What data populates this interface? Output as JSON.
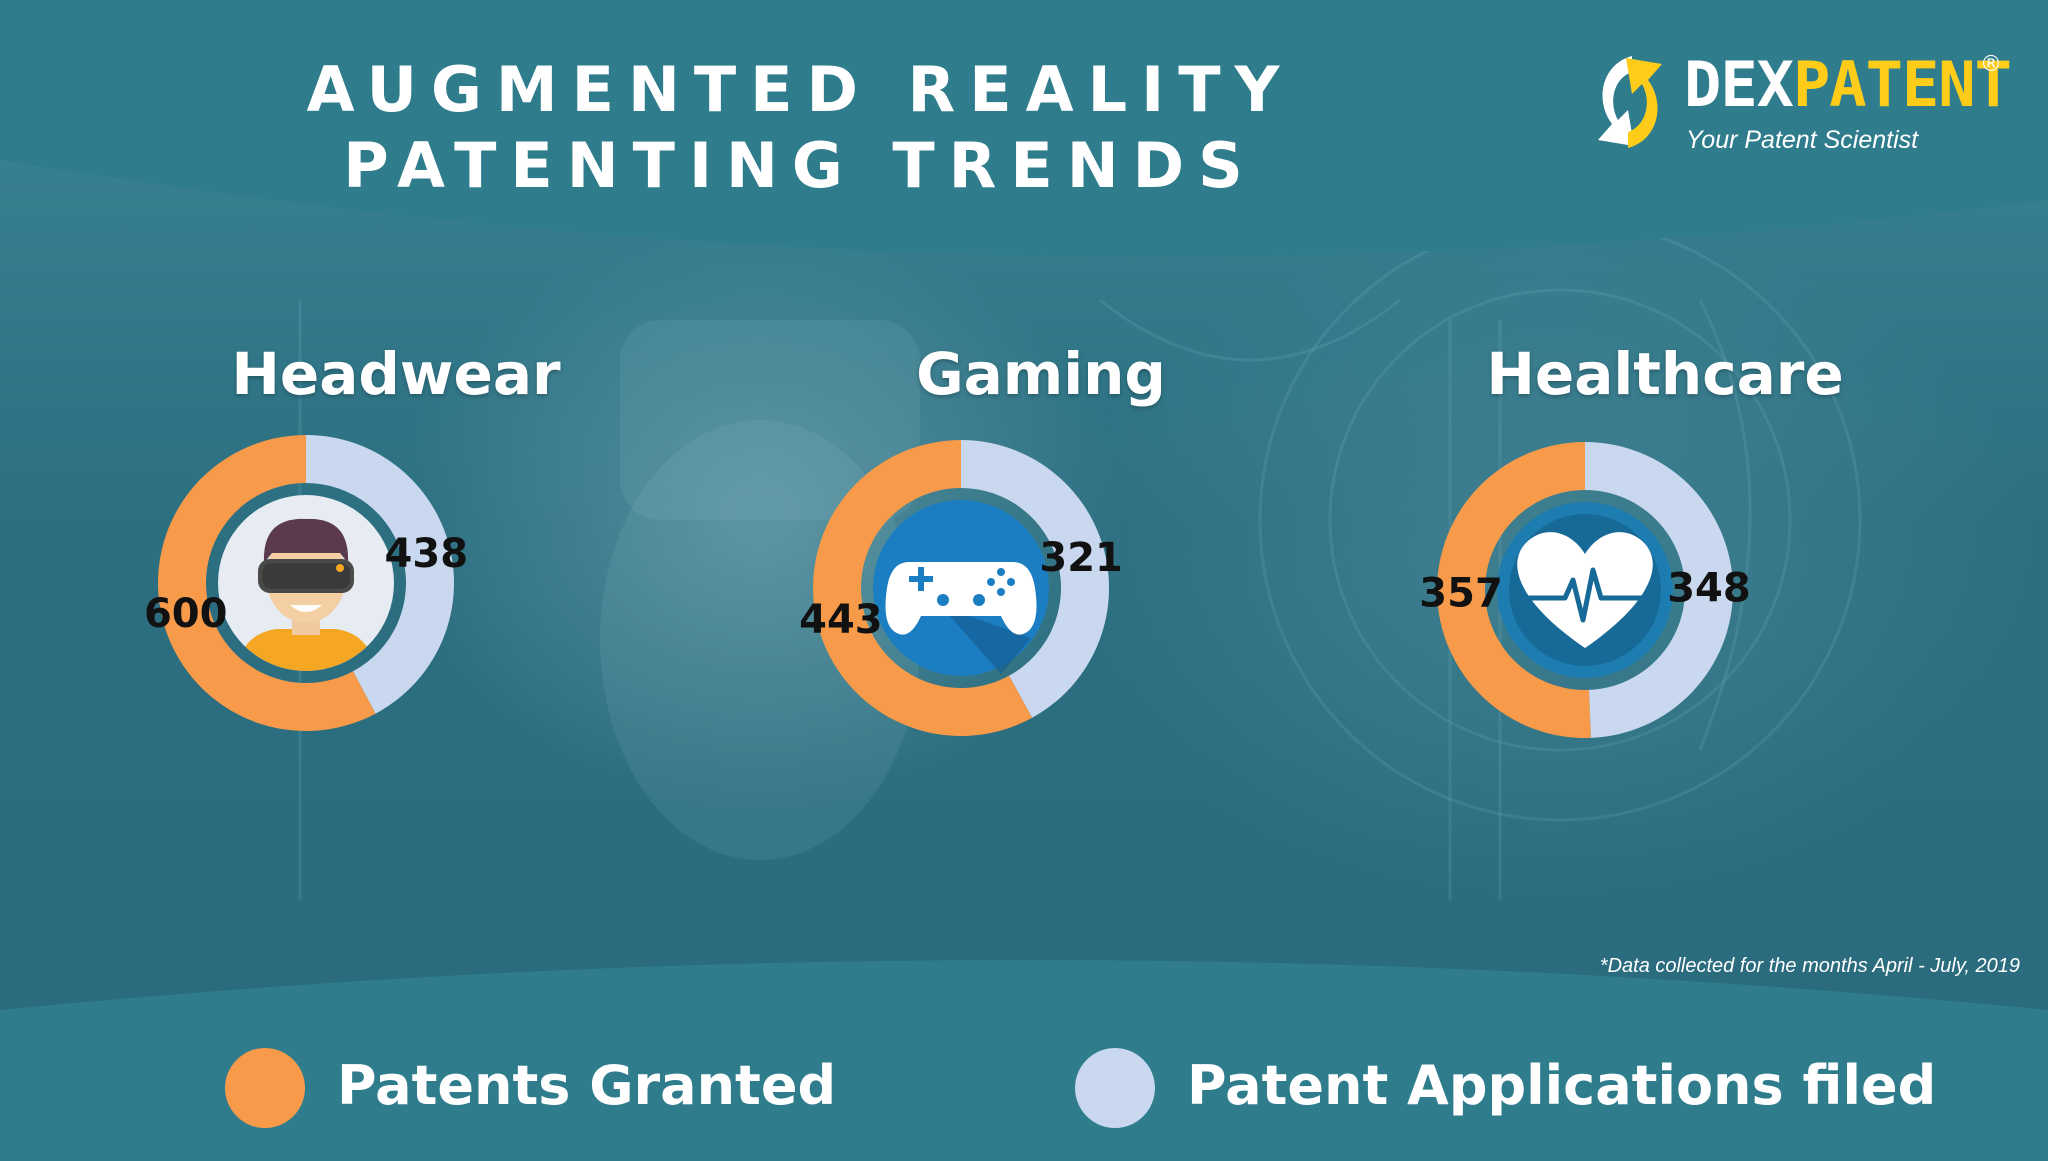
{
  "header": {
    "title_line1": "AUGMENTED REALITY",
    "title_line2": "PATENTING TRENDS"
  },
  "logo": {
    "brand_part1": "DEX",
    "brand_part2": "PATENT",
    "registered_mark": "®",
    "tagline": "Your Patent Scientist"
  },
  "colors": {
    "granted": "#f79a4a",
    "filed": "#c9d8ee",
    "band": "#2f7c8d",
    "brand_yellow": "#ffcc1a",
    "icon_blue": "#1b7ec2"
  },
  "icons": [
    "vr-headset-person-icon",
    "game-controller-icon",
    "heart-pulse-icon"
  ],
  "chart_data": [
    {
      "type": "pie",
      "title": "Headwear",
      "categories": [
        "Patents Granted",
        "Patent Applications filed"
      ],
      "values": [
        600,
        438
      ]
    },
    {
      "type": "pie",
      "title": "Gaming",
      "categories": [
        "Patents Granted",
        "Patent Applications filed"
      ],
      "values": [
        443,
        321
      ]
    },
    {
      "type": "pie",
      "title": "Healthcare",
      "categories": [
        "Patents Granted",
        "Patent Applications filed"
      ],
      "values": [
        357,
        348
      ]
    }
  ],
  "legend": {
    "position": "bottom",
    "granted_label": "Patents Granted",
    "filed_label": "Patent Applications filed"
  },
  "footnote": "*Data collected for the months April - July, 2019"
}
